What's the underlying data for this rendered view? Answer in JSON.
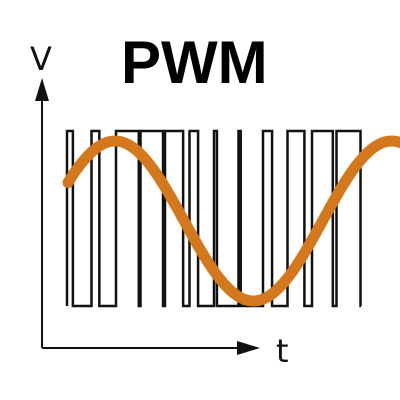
{
  "title": "PWM",
  "axes": {
    "y_label": "V",
    "x_label": "t"
  },
  "colors": {
    "pwm_stroke": "#111111",
    "sine_stroke": "#d4781e",
    "axis_stroke": "#111111"
  },
  "pulse_train": {
    "duty_cycles": [
      0.24,
      0.32,
      0.93,
      0.92,
      0.74,
      0.35,
      0.12,
      0.09,
      0.37,
      0.69,
      0.85,
      0.98
    ],
    "low_level": 0,
    "high_level": 1
  },
  "modulating_signal": {
    "waveform": "sine",
    "cycles_shown": 1.2
  }
}
